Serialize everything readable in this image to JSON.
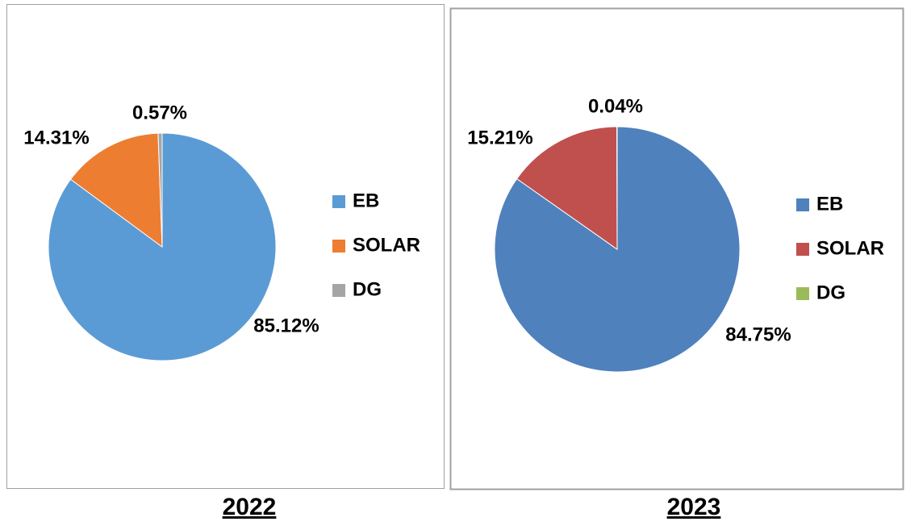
{
  "chart_data": [
    {
      "type": "pie",
      "title": "2022",
      "categories": [
        "EB",
        "SOLAR",
        "DG"
      ],
      "values": [
        85.12,
        14.31,
        0.57
      ],
      "value_labels": [
        "85.12%",
        "14.31%",
        "0.57%"
      ],
      "colors": [
        "#5b9bd5",
        "#ed7d31",
        "#a5a5a5"
      ]
    },
    {
      "type": "pie",
      "title": "2023",
      "categories": [
        "EB",
        "SOLAR",
        "DG"
      ],
      "values": [
        84.75,
        15.21,
        0.04
      ],
      "value_labels": [
        "84.75%",
        "15.21%",
        "0.04%"
      ],
      "colors": [
        "#4f81bd",
        "#c0504d",
        "#9bbb59"
      ]
    }
  ]
}
